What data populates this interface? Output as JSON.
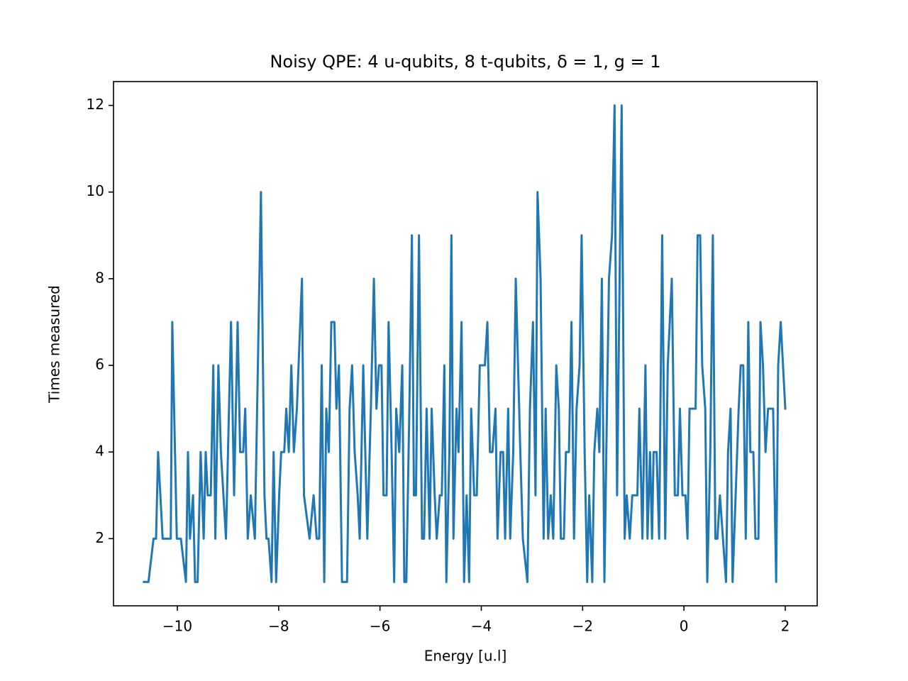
{
  "chart_data": {
    "type": "line",
    "title": "Noisy QPE: 4 u-qubits, 8 t-qubits, δ = 1, g = 1",
    "x_label": "Energy [u.l]",
    "y_label": "Times measured",
    "color": "#1f77b4",
    "xlim": [
      -11.26,
      2.63
    ],
    "ylim": [
      0.45,
      12.55
    ],
    "xticks": [
      {
        "value": -10,
        "label": "−10"
      },
      {
        "value": -8,
        "label": "−8"
      },
      {
        "value": -6,
        "label": "−6"
      },
      {
        "value": -4,
        "label": "−4"
      },
      {
        "value": -2,
        "label": "−2"
      },
      0,
      2
    ],
    "yticks": [
      2,
      4,
      6,
      8,
      10,
      12
    ],
    "x": [
      -10.66,
      -10.57,
      -10.47,
      -10.42,
      -10.38,
      -10.29,
      -10.25,
      -10.13,
      -10.1,
      -10.01,
      -9.93,
      -9.83,
      -9.79,
      -9.75,
      -9.69,
      -9.65,
      -9.6,
      -9.54,
      -9.48,
      -9.44,
      -9.4,
      -9.34,
      -9.29,
      -9.25,
      -9.19,
      -9.14,
      -9.04,
      -8.94,
      -8.88,
      -8.81,
      -8.76,
      -8.7,
      -8.66,
      -8.61,
      -8.55,
      -8.47,
      -8.35,
      -8.28,
      -8.24,
      -8.2,
      -8.14,
      -8.1,
      -8.05,
      -7.99,
      -7.95,
      -7.89,
      -7.85,
      -7.8,
      -7.75,
      -7.7,
      -7.64,
      -7.54,
      -7.5,
      -7.39,
      -7.31,
      -7.25,
      -7.2,
      -7.15,
      -7.1,
      -7.06,
      -7.01,
      -6.96,
      -6.9,
      -6.86,
      -6.81,
      -6.75,
      -6.65,
      -6.6,
      -6.55,
      -6.5,
      -6.44,
      -6.4,
      -6.33,
      -6.25,
      -6.18,
      -6.12,
      -6.07,
      -6.02,
      -5.97,
      -5.93,
      -5.87,
      -5.83,
      -5.77,
      -5.72,
      -5.68,
      -5.62,
      -5.56,
      -5.52,
      -5.48,
      -5.42,
      -5.37,
      -5.33,
      -5.29,
      -5.23,
      -5.17,
      -5.13,
      -5.08,
      -5.02,
      -4.98,
      -4.92,
      -4.88,
      -4.82,
      -4.78,
      -4.73,
      -4.69,
      -4.63,
      -4.59,
      -4.55,
      -4.49,
      -4.45,
      -4.39,
      -4.34,
      -4.29,
      -4.24,
      -4.2,
      -4.14,
      -4.09,
      -4.03,
      -3.93,
      -3.88,
      -3.83,
      -3.78,
      -3.72,
      -3.68,
      -3.62,
      -3.57,
      -3.53,
      -3.47,
      -3.43,
      -3.37,
      -3.32,
      -3.23,
      -3.18,
      -3.09,
      -3.04,
      -2.98,
      -2.93,
      -2.89,
      -2.83,
      -2.77,
      -2.73,
      -2.68,
      -2.63,
      -2.58,
      -2.52,
      -2.47,
      -2.43,
      -2.37,
      -2.33,
      -2.27,
      -2.22,
      -2.17,
      -2.12,
      -2.06,
      -2.02,
      -1.96,
      -1.91,
      -1.87,
      -1.81,
      -1.77,
      -1.71,
      -1.67,
      -1.62,
      -1.57,
      -1.52,
      -1.48,
      -1.42,
      -1.37,
      -1.32,
      -1.23,
      -1.17,
      -1.13,
      -1.07,
      -1.02,
      -0.92,
      -0.88,
      -0.82,
      -0.76,
      -0.72,
      -0.67,
      -0.63,
      -0.6,
      -0.54,
      -0.49,
      -0.43,
      -0.37,
      -0.32,
      -0.24,
      -0.18,
      -0.12,
      -0.08,
      -0.03,
      0.03,
      0.07,
      0.11,
      0.23,
      0.27,
      0.32,
      0.36,
      0.42,
      0.46,
      0.52,
      0.57,
      0.62,
      0.66,
      0.71,
      0.77,
      0.83,
      0.87,
      0.92,
      0.96,
      1.02,
      1.08,
      1.12,
      1.17,
      1.22,
      1.27,
      1.31,
      1.37,
      1.41,
      1.47,
      1.51,
      1.56,
      1.61,
      1.66,
      1.76,
      1.82,
      1.86,
      1.91,
      2.0
    ],
    "values": [
      1,
      1,
      2,
      2,
      4,
      2,
      2,
      2,
      7,
      2,
      2,
      1,
      4,
      2,
      3,
      1,
      1,
      4,
      2,
      4,
      3,
      3,
      6,
      2,
      6,
      4,
      2,
      7,
      3,
      7,
      4,
      4,
      5,
      2,
      3,
      2,
      10,
      3,
      2,
      2,
      1,
      4,
      1,
      3,
      4,
      4,
      5,
      4,
      6,
      4,
      5,
      8,
      3,
      2,
      3,
      2,
      2,
      6,
      1,
      5,
      4,
      7,
      7,
      5,
      6,
      1,
      1,
      5,
      6,
      4,
      3,
      2,
      6,
      2,
      5,
      8,
      5,
      6,
      6,
      3,
      3,
      7,
      4,
      1,
      5,
      4,
      6,
      1,
      1,
      5,
      9,
      3,
      3,
      9,
      2,
      2,
      5,
      2,
      5,
      3,
      2,
      3,
      3,
      6,
      1,
      4,
      9,
      2,
      5,
      4,
      7,
      1,
      3,
      1,
      5,
      3,
      3,
      6,
      6,
      7,
      4,
      4,
      5,
      2,
      4,
      4,
      2,
      5,
      2,
      4,
      8,
      4,
      2,
      1,
      5,
      7,
      3,
      10,
      8,
      2,
      5,
      2,
      3,
      2,
      6,
      5,
      2,
      2,
      4,
      4,
      7,
      2,
      5,
      6,
      9,
      4,
      1,
      3,
      1,
      4,
      5,
      4,
      8,
      1,
      5,
      8,
      9,
      12,
      3,
      12,
      2,
      3,
      2,
      3,
      3,
      5,
      2,
      6,
      2,
      4,
      2,
      4,
      4,
      2,
      9,
      2,
      6,
      8,
      3,
      3,
      5,
      3,
      3,
      2,
      5,
      5,
      9,
      9,
      6,
      5,
      1,
      4,
      9,
      2,
      2,
      3,
      2,
      1,
      4,
      5,
      1,
      3,
      5,
      6,
      6,
      2,
      7,
      4,
      4,
      2,
      2,
      7,
      6,
      4,
      5,
      5,
      1,
      6,
      7,
      5
    ]
  }
}
